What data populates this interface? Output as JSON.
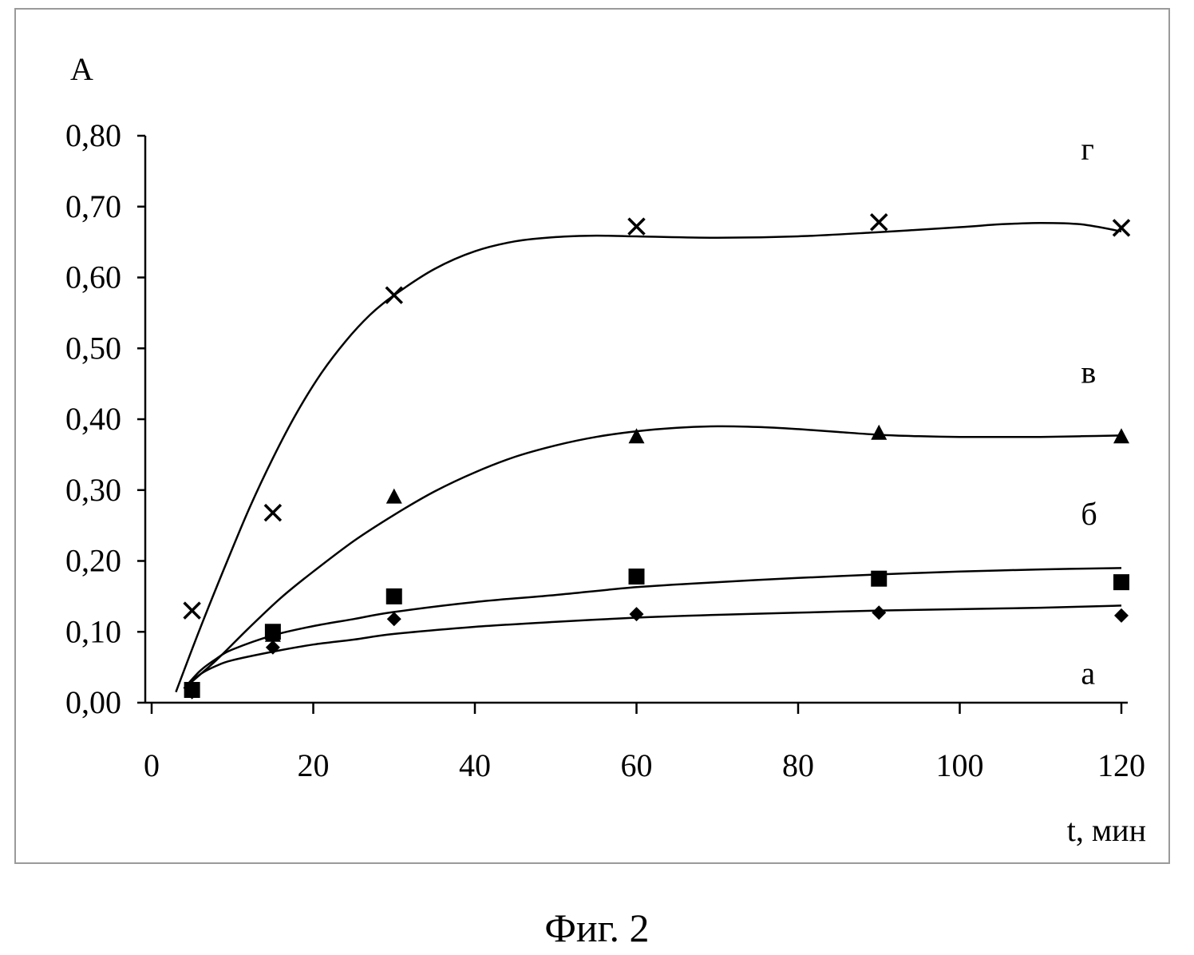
{
  "caption": "Фиг. 2",
  "chart_data": {
    "type": "scatter",
    "title": "",
    "ylabel": "A",
    "xlabel": "t, мин",
    "xlim": [
      0,
      120
    ],
    "ylim": [
      0,
      0.8
    ],
    "xticks": [
      0,
      20,
      40,
      60,
      80,
      100,
      120
    ],
    "yticks": [
      0,
      0.1,
      0.2,
      0.3,
      0.4,
      0.5,
      0.6,
      0.7,
      0.8
    ],
    "xtick_labels": [
      "0",
      "20",
      "40",
      "60",
      "80",
      "100",
      "120"
    ],
    "ytick_labels": [
      "0,00",
      "0,10",
      "0,20",
      "0,30",
      "0,40",
      "0,50",
      "0,60",
      "0,70",
      "0,80"
    ],
    "grid": false,
    "legend": "none",
    "series": [
      {
        "name": "а",
        "marker": "diamond",
        "label_at": [
          115,
          0.04
        ],
        "points": [
          [
            5,
            0.015
          ],
          [
            15,
            0.078
          ],
          [
            30,
            0.118
          ],
          [
            60,
            0.125
          ],
          [
            90,
            0.127
          ],
          [
            120,
            0.123
          ]
        ],
        "trend": [
          [
            4,
            0.02
          ],
          [
            6,
            0.04
          ],
          [
            8,
            0.052
          ],
          [
            10,
            0.06
          ],
          [
            15,
            0.072
          ],
          [
            20,
            0.082
          ],
          [
            25,
            0.089
          ],
          [
            30,
            0.097
          ],
          [
            40,
            0.107
          ],
          [
            50,
            0.114
          ],
          [
            60,
            0.12
          ],
          [
            70,
            0.124
          ],
          [
            80,
            0.127
          ],
          [
            90,
            0.13
          ],
          [
            100,
            0.132
          ],
          [
            110,
            0.134
          ],
          [
            120,
            0.137
          ]
        ]
      },
      {
        "name": "б",
        "marker": "square",
        "label_at": [
          115,
          0.265
        ],
        "points": [
          [
            5,
            0.018
          ],
          [
            15,
            0.1
          ],
          [
            30,
            0.15
          ],
          [
            60,
            0.178
          ],
          [
            90,
            0.175
          ],
          [
            120,
            0.17
          ]
        ],
        "trend": [
          [
            4,
            0.02
          ],
          [
            6,
            0.045
          ],
          [
            8,
            0.062
          ],
          [
            10,
            0.075
          ],
          [
            15,
            0.095
          ],
          [
            20,
            0.108
          ],
          [
            25,
            0.118
          ],
          [
            30,
            0.128
          ],
          [
            40,
            0.142
          ],
          [
            50,
            0.152
          ],
          [
            60,
            0.163
          ],
          [
            70,
            0.17
          ],
          [
            80,
            0.176
          ],
          [
            90,
            0.181
          ],
          [
            100,
            0.185
          ],
          [
            110,
            0.188
          ],
          [
            120,
            0.19
          ]
        ]
      },
      {
        "name": "в",
        "marker": "triangle",
        "label_at": [
          115,
          0.465
        ],
        "points": [
          [
            5,
            0.02
          ],
          [
            15,
            0.095
          ],
          [
            30,
            0.29
          ],
          [
            60,
            0.375
          ],
          [
            90,
            0.38
          ],
          [
            120,
            0.375
          ]
        ],
        "trend": [
          [
            4,
            0.02
          ],
          [
            8,
            0.06
          ],
          [
            12,
            0.105
          ],
          [
            16,
            0.148
          ],
          [
            20,
            0.185
          ],
          [
            25,
            0.228
          ],
          [
            30,
            0.265
          ],
          [
            35,
            0.298
          ],
          [
            40,
            0.325
          ],
          [
            45,
            0.347
          ],
          [
            50,
            0.363
          ],
          [
            55,
            0.375
          ],
          [
            60,
            0.383
          ],
          [
            65,
            0.388
          ],
          [
            70,
            0.39
          ],
          [
            75,
            0.389
          ],
          [
            80,
            0.386
          ],
          [
            85,
            0.382
          ],
          [
            90,
            0.378
          ],
          [
            95,
            0.376
          ],
          [
            100,
            0.375
          ],
          [
            105,
            0.375
          ],
          [
            110,
            0.375
          ],
          [
            115,
            0.376
          ],
          [
            120,
            0.377
          ]
        ]
      },
      {
        "name": "г",
        "marker": "x",
        "label_at": [
          115,
          0.78
        ],
        "points": [
          [
            5,
            0.13
          ],
          [
            15,
            0.268
          ],
          [
            30,
            0.575
          ],
          [
            60,
            0.672
          ],
          [
            90,
            0.678
          ],
          [
            120,
            0.67
          ]
        ],
        "trend": [
          [
            3,
            0.015
          ],
          [
            6,
            0.105
          ],
          [
            9,
            0.19
          ],
          [
            12,
            0.272
          ],
          [
            15,
            0.345
          ],
          [
            18,
            0.41
          ],
          [
            21,
            0.465
          ],
          [
            24,
            0.51
          ],
          [
            27,
            0.547
          ],
          [
            30,
            0.575
          ],
          [
            35,
            0.612
          ],
          [
            40,
            0.637
          ],
          [
            45,
            0.651
          ],
          [
            50,
            0.657
          ],
          [
            55,
            0.659
          ],
          [
            60,
            0.658
          ],
          [
            70,
            0.656
          ],
          [
            80,
            0.658
          ],
          [
            90,
            0.664
          ],
          [
            100,
            0.671
          ],
          [
            105,
            0.675
          ],
          [
            110,
            0.677
          ],
          [
            115,
            0.675
          ],
          [
            120,
            0.665
          ]
        ]
      }
    ]
  }
}
